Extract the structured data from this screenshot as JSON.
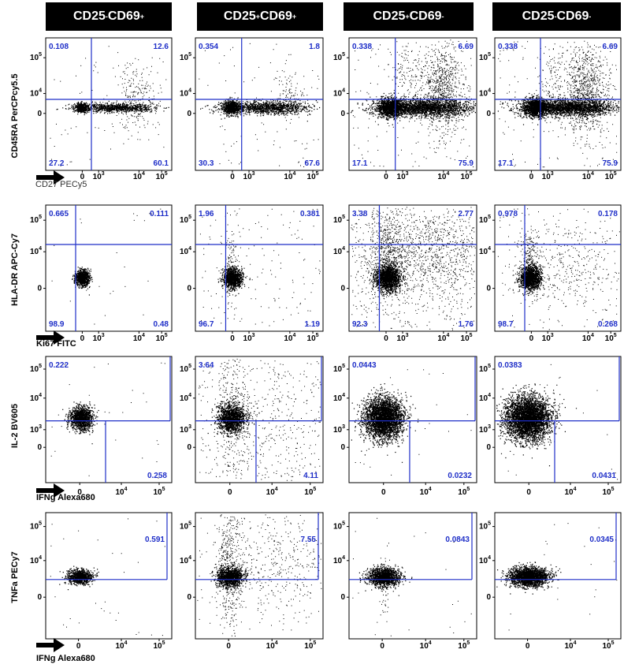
{
  "columns": [
    {
      "parts": [
        [
          "CD25",
          ""
        ],
        [
          "-",
          "sup"
        ],
        [
          "CD69",
          ""
        ],
        [
          "+",
          "sup"
        ]
      ]
    },
    {
      "parts": [
        [
          "CD25",
          ""
        ],
        [
          "+",
          "sup"
        ],
        [
          "CD69",
          ""
        ],
        [
          "+",
          "sup"
        ]
      ]
    },
    {
      "parts": [
        [
          "CD25",
          ""
        ],
        [
          "+",
          "sup"
        ],
        [
          "CD69",
          ""
        ],
        [
          "-",
          "sup"
        ]
      ]
    },
    {
      "parts": [
        [
          "CD25",
          ""
        ],
        [
          "-",
          "sup"
        ],
        [
          "CD69",
          ""
        ],
        [
          "-",
          "sup"
        ]
      ]
    }
  ],
  "chart_data": [
    {
      "type": "scatter",
      "row_label": "CD45RA PerCPcy5.5",
      "xlabel": "CD27 PECy5",
      "x_ticks": [
        "0",
        "10^3",
        "10^4",
        "10^5"
      ],
      "y_ticks": [
        "0",
        "10^4",
        "10^5"
      ],
      "gate": "quadrant",
      "panels": [
        {
          "quadrants": {
            "top_left": "0.108",
            "top_right": "12.6",
            "bottom_left": "27.2",
            "bottom_right": "60.1"
          }
        },
        {
          "quadrants": {
            "top_left": "0.354",
            "top_right": "1.8",
            "bottom_left": "30.3",
            "bottom_right": "67.6"
          }
        },
        {
          "quadrants": {
            "top_left": "0.338",
            "top_right": "6.69",
            "bottom_left": "17.1",
            "bottom_right": "75.9"
          }
        },
        {
          "quadrants": {
            "top_left": "0.338",
            "top_right": "6.69",
            "bottom_left": "17.1",
            "bottom_right": "75.9"
          }
        }
      ]
    },
    {
      "type": "scatter",
      "row_label": "HLA-DR APC-Cy7",
      "xlabel": "Ki67 FITC",
      "x_ticks": [
        "0",
        "10^3",
        "10^4",
        "10^5"
      ],
      "y_ticks": [
        "0",
        "10^4",
        "10^5"
      ],
      "gate": "quadrant",
      "panels": [
        {
          "quadrants": {
            "top_left": "0.665",
            "top_right": "0.111",
            "bottom_left": "98.9",
            "bottom_right": "0.48"
          }
        },
        {
          "quadrants": {
            "top_left": "1.96",
            "top_right": "0.381",
            "bottom_left": "96.7",
            "bottom_right": "1.19"
          }
        },
        {
          "quadrants": {
            "top_left": "3.38",
            "top_right": "2.77",
            "bottom_left": "92.3",
            "bottom_right": "1.76"
          }
        },
        {
          "quadrants": {
            "top_left": "0.978",
            "top_right": "0.178",
            "bottom_left": "98.7",
            "bottom_right": "0.268"
          }
        }
      ]
    },
    {
      "type": "scatter",
      "row_label": "IL-2  BV605",
      "xlabel": "IFNg Alexa680",
      "x_ticks": [
        "0",
        "10^4",
        "10^5"
      ],
      "y_ticks": [
        "0",
        "10^3",
        "10^4",
        "10^5"
      ],
      "gate": "split",
      "panels": [
        {
          "values": {
            "upper": "0.222",
            "lower_right": "0.258"
          }
        },
        {
          "values": {
            "upper": "3.64",
            "lower_right": "4.11"
          }
        },
        {
          "values": {
            "upper": "0.0443",
            "lower_right": "0.0232"
          }
        },
        {
          "values": {
            "upper": "0.0383",
            "lower_right": "0.0431"
          }
        }
      ]
    },
    {
      "type": "scatter",
      "row_label": "TNFa  PECy7",
      "xlabel": "IFNg Alexa680",
      "x_ticks": [
        "0",
        "10^4",
        "10^5"
      ],
      "y_ticks": [
        "0",
        "10^4",
        "10^5"
      ],
      "gate": "single",
      "panels": [
        {
          "values": {
            "gate": "0.591"
          }
        },
        {
          "values": {
            "gate": "7.55"
          }
        },
        {
          "values": {
            "gate": "0.0843"
          }
        },
        {
          "values": {
            "gate": "0.0345"
          }
        }
      ]
    }
  ]
}
